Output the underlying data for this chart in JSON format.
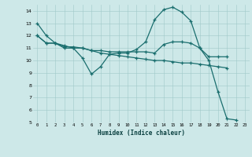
{
  "xlabel": "Humidex (Indice chaleur)",
  "bg_color": "#cde8e8",
  "line_color": "#1a6e6e",
  "xlim": [
    -0.5,
    23.5
  ],
  "ylim": [
    5,
    14.5
  ],
  "yticks": [
    5,
    6,
    7,
    8,
    9,
    10,
    11,
    12,
    13,
    14
  ],
  "xticks": [
    0,
    1,
    2,
    3,
    4,
    5,
    6,
    7,
    8,
    9,
    10,
    11,
    12,
    13,
    14,
    15,
    16,
    17,
    18,
    19,
    20,
    21,
    22,
    23
  ],
  "line1_x": [
    0,
    1,
    2,
    3,
    4,
    5,
    6,
    7,
    8,
    9,
    10,
    11,
    12,
    13,
    14,
    15,
    16,
    17,
    18,
    19,
    20,
    21,
    22
  ],
  "line1_y": [
    13,
    12,
    11.4,
    11,
    11,
    10.2,
    8.9,
    9.5,
    10.5,
    10.6,
    10.6,
    10.9,
    11.5,
    13.3,
    14.1,
    14.3,
    13.9,
    13.2,
    11.0,
    10.0,
    7.5,
    5.3,
    5.2
  ],
  "line2_x": [
    0,
    1,
    2,
    3,
    4,
    5,
    6,
    7,
    8,
    9,
    10,
    11,
    12,
    13,
    14,
    15,
    16,
    17,
    18,
    19,
    20,
    21
  ],
  "line2_y": [
    12,
    11.4,
    11.4,
    11.1,
    11.1,
    11.0,
    10.8,
    10.8,
    10.7,
    10.7,
    10.7,
    10.7,
    10.7,
    10.6,
    11.3,
    11.5,
    11.5,
    11.4,
    11.0,
    10.3,
    10.3,
    10.3
  ],
  "line3_x": [
    0,
    1,
    2,
    3,
    4,
    5,
    6,
    7,
    8,
    9,
    10,
    11,
    12,
    13,
    14,
    15,
    16,
    17,
    18,
    19,
    20,
    21
  ],
  "line3_y": [
    12,
    11.4,
    11.4,
    11.2,
    11.0,
    11.0,
    10.8,
    10.6,
    10.5,
    10.4,
    10.3,
    10.2,
    10.1,
    10.0,
    10.0,
    9.9,
    9.8,
    9.8,
    9.7,
    9.6,
    9.5,
    9.4
  ]
}
